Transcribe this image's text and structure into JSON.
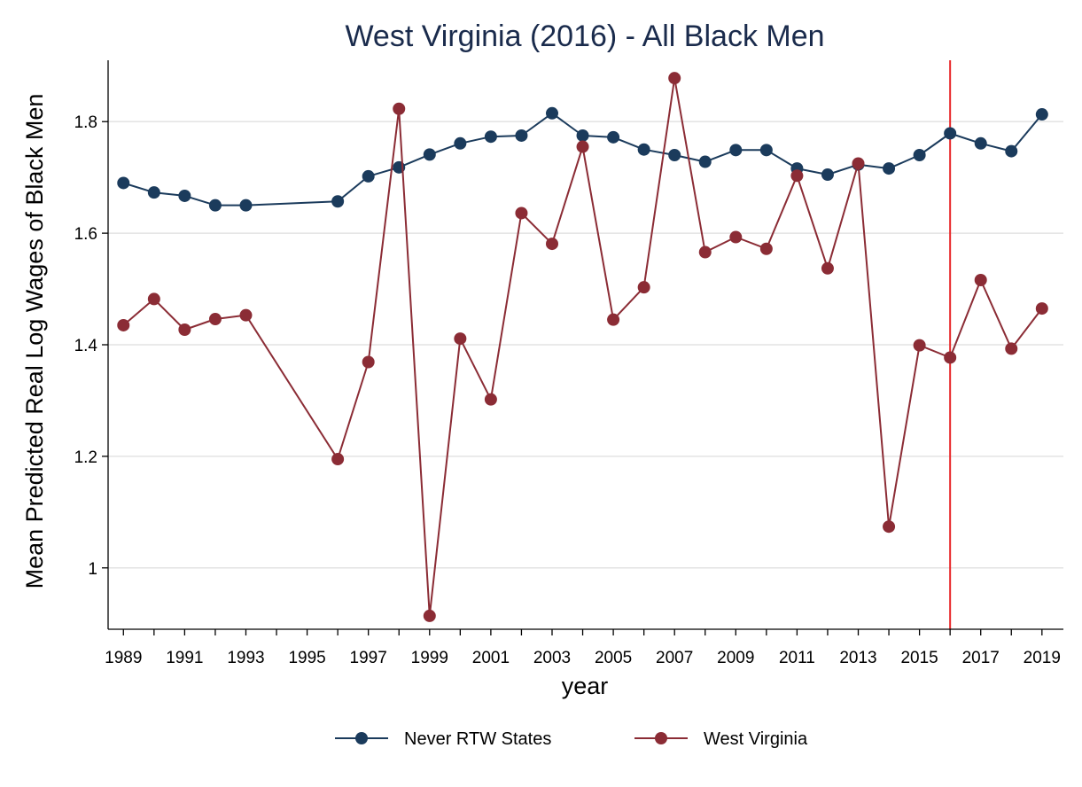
{
  "chart_data": {
    "type": "line",
    "title": "West Virginia (2016) - All Black Men",
    "xlabel": "year",
    "ylabel": "Mean Predicted Real Log Wages of Black Men",
    "xlim": [
      1988.5,
      2019.7
    ],
    "ylim": [
      0.89,
      1.91
    ],
    "x_ticks": [
      1989,
      1991,
      1993,
      1995,
      1997,
      1999,
      2001,
      2003,
      2005,
      2007,
      2009,
      2011,
      2013,
      2015,
      2017,
      2019
    ],
    "x_tick_labels": [
      "1989",
      "1991",
      "1993",
      "1995",
      "1997",
      "1999",
      "2001",
      "2003",
      "2005",
      "2007",
      "2009",
      "2011",
      "2013",
      "2015",
      "2017",
      "2019"
    ],
    "y_ticks": [
      1.0,
      1.2,
      1.4,
      1.6,
      1.8
    ],
    "y_tick_labels": [
      "1",
      "1.2",
      "1.4",
      "1.6",
      "1.8"
    ],
    "grid": "horizontal",
    "legend_position": "bottom",
    "reference_line": {
      "x": 2016,
      "color": "#e8292b"
    },
    "series": [
      {
        "name": "Never RTW States",
        "color": "#1b3b5c",
        "x": [
          1989,
          1990,
          1991,
          1992,
          1993,
          1996,
          1997,
          1998,
          1999,
          2000,
          2001,
          2002,
          2003,
          2004,
          2005,
          2006,
          2007,
          2008,
          2009,
          2010,
          2011,
          2012,
          2013,
          2014,
          2015,
          2016,
          2017,
          2018,
          2019
        ],
        "values": [
          1.69,
          1.673,
          1.667,
          1.65,
          1.65,
          1.657,
          1.702,
          1.718,
          1.741,
          1.761,
          1.773,
          1.775,
          1.815,
          1.775,
          1.772,
          1.75,
          1.74,
          1.728,
          1.749,
          1.749,
          1.716,
          1.705,
          1.723,
          1.716,
          1.74,
          1.779,
          1.761,
          1.747,
          1.813
        ]
      },
      {
        "name": "West Virginia",
        "color": "#8b2c35",
        "x": [
          1989,
          1990,
          1991,
          1992,
          1993,
          1996,
          1997,
          1998,
          1999,
          2000,
          2001,
          2002,
          2003,
          2004,
          2005,
          2006,
          2007,
          2008,
          2009,
          2010,
          2011,
          2012,
          2013,
          2014,
          2015,
          2016,
          2017,
          2018,
          2019
        ],
        "values": [
          1.435,
          1.482,
          1.427,
          1.446,
          1.453,
          1.195,
          1.369,
          1.823,
          0.914,
          1.411,
          1.302,
          1.636,
          1.581,
          1.755,
          1.445,
          1.503,
          1.878,
          1.566,
          1.593,
          1.572,
          1.703,
          1.537,
          1.725,
          1.074,
          1.399,
          1.377,
          1.516,
          1.393,
          1.465
        ]
      }
    ]
  }
}
